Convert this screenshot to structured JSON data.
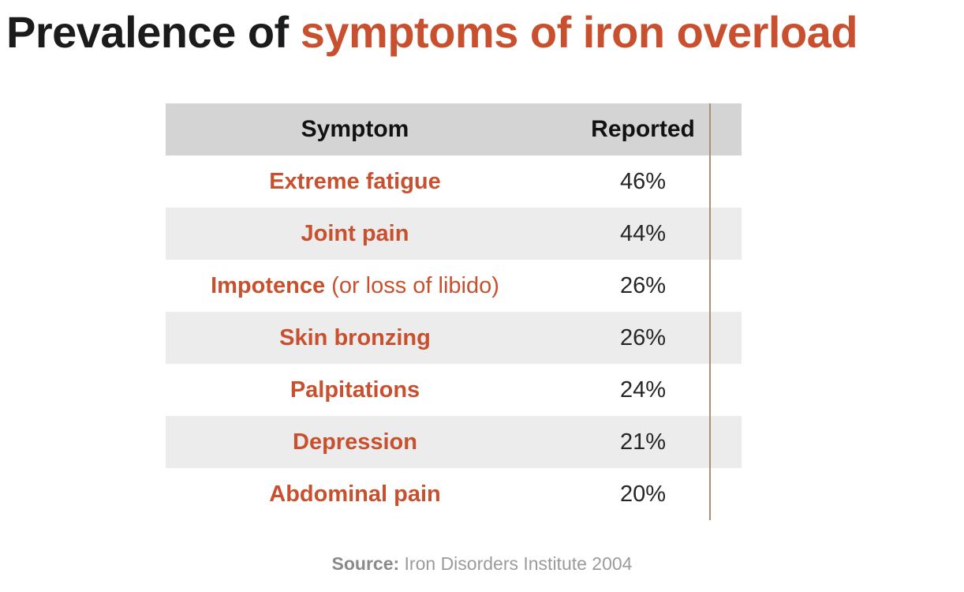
{
  "title": {
    "prefix": "Prevalence of ",
    "highlight": "symptoms of iron overload"
  },
  "table": {
    "headers": {
      "symptom": "Symptom",
      "reported": "Reported"
    },
    "rows": [
      {
        "symptom": "Extreme fatigue",
        "note": "",
        "reported": "46%"
      },
      {
        "symptom": "Joint pain",
        "note": "",
        "reported": "44%"
      },
      {
        "symptom": "Impotence",
        "note": " (or loss of libido)",
        "reported": "26%"
      },
      {
        "symptom": "Skin bronzing",
        "note": "",
        "reported": "26%"
      },
      {
        "symptom": "Palpitations",
        "note": "",
        "reported": "24%"
      },
      {
        "symptom": "Depression",
        "note": "",
        "reported": "21%"
      },
      {
        "symptom": "Abdominal pain",
        "note": "",
        "reported": "20%"
      }
    ]
  },
  "source": {
    "label": "Source:",
    "text": " Iron Disorders Institute 2004"
  },
  "colors": {
    "accent_orange": "#c8502e",
    "title_black": "#1b1b1b",
    "header_bg": "#d4d4d4",
    "row_alt_bg": "#ececec",
    "divider": "#a89070",
    "value_text": "#262626",
    "source_gray": "#9b9b9b"
  },
  "chart_data": {
    "type": "table",
    "title": "Prevalence of symptoms of iron overload",
    "columns": [
      "Symptom",
      "Reported"
    ],
    "categories": [
      "Extreme fatigue",
      "Joint pain",
      "Impotence (or loss of libido)",
      "Skin bronzing",
      "Palpitations",
      "Depression",
      "Abdominal pain"
    ],
    "values": [
      46,
      44,
      26,
      26,
      24,
      21,
      20
    ],
    "value_unit": "%",
    "source": "Source: Iron Disorders Institute 2004",
    "layout_hints": {
      "alternating_row_shading": true,
      "header_shaded": true,
      "column_divider": true
    }
  }
}
